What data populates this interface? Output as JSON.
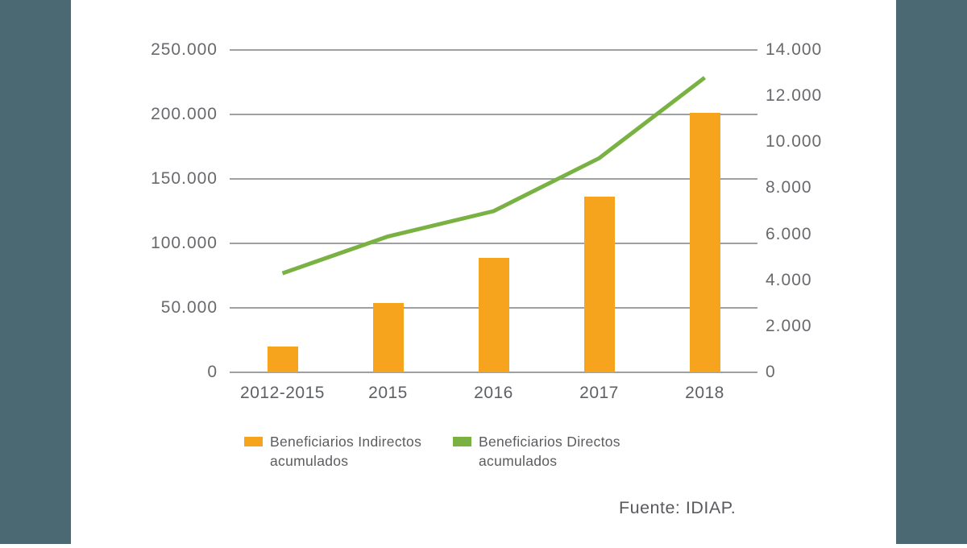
{
  "page": {
    "background": "#ffffff",
    "accent_band_color": "#4b6972",
    "gridline_color": "#9ea0a4"
  },
  "chart_data": {
    "type": "bar+line combo",
    "title": "",
    "categories": [
      "2012-2015",
      "2015",
      "2016",
      "2017",
      "2018"
    ],
    "series": [
      {
        "name": "Beneficiarios Indirectos acumulados",
        "type": "bar",
        "axis": "left",
        "color": "#f6a41d",
        "values": [
          20000,
          54000,
          89000,
          136000,
          201000
        ]
      },
      {
        "name": "Beneficiarios Directos acumulados",
        "type": "line",
        "axis": "right",
        "color": "#79b242",
        "values": [
          4300,
          5900,
          7000,
          9300,
          12800
        ]
      }
    ],
    "left_axis": {
      "min": 0,
      "max": 250000,
      "tick_labels": [
        "250.000",
        "200.000",
        "150.000",
        "100.000",
        "50.000",
        "0"
      ]
    },
    "right_axis": {
      "min": 0,
      "max": 14000,
      "tick_labels": [
        "14.000",
        "12.000",
        "10.000",
        "8.000",
        "6.000",
        "4.000",
        "2.000",
        "0"
      ]
    },
    "grid": "horizontal",
    "legend_position": "bottom"
  },
  "legend": {
    "items": [
      {
        "line1": "Beneficiarios Indirectos",
        "line2": "acumulados",
        "color": "#f6a41d"
      },
      {
        "line1": "Beneficiarios Directos",
        "line2": "acumulados",
        "color": "#79b242"
      }
    ]
  },
  "source": {
    "text": "Fuente: IDIAP."
  }
}
